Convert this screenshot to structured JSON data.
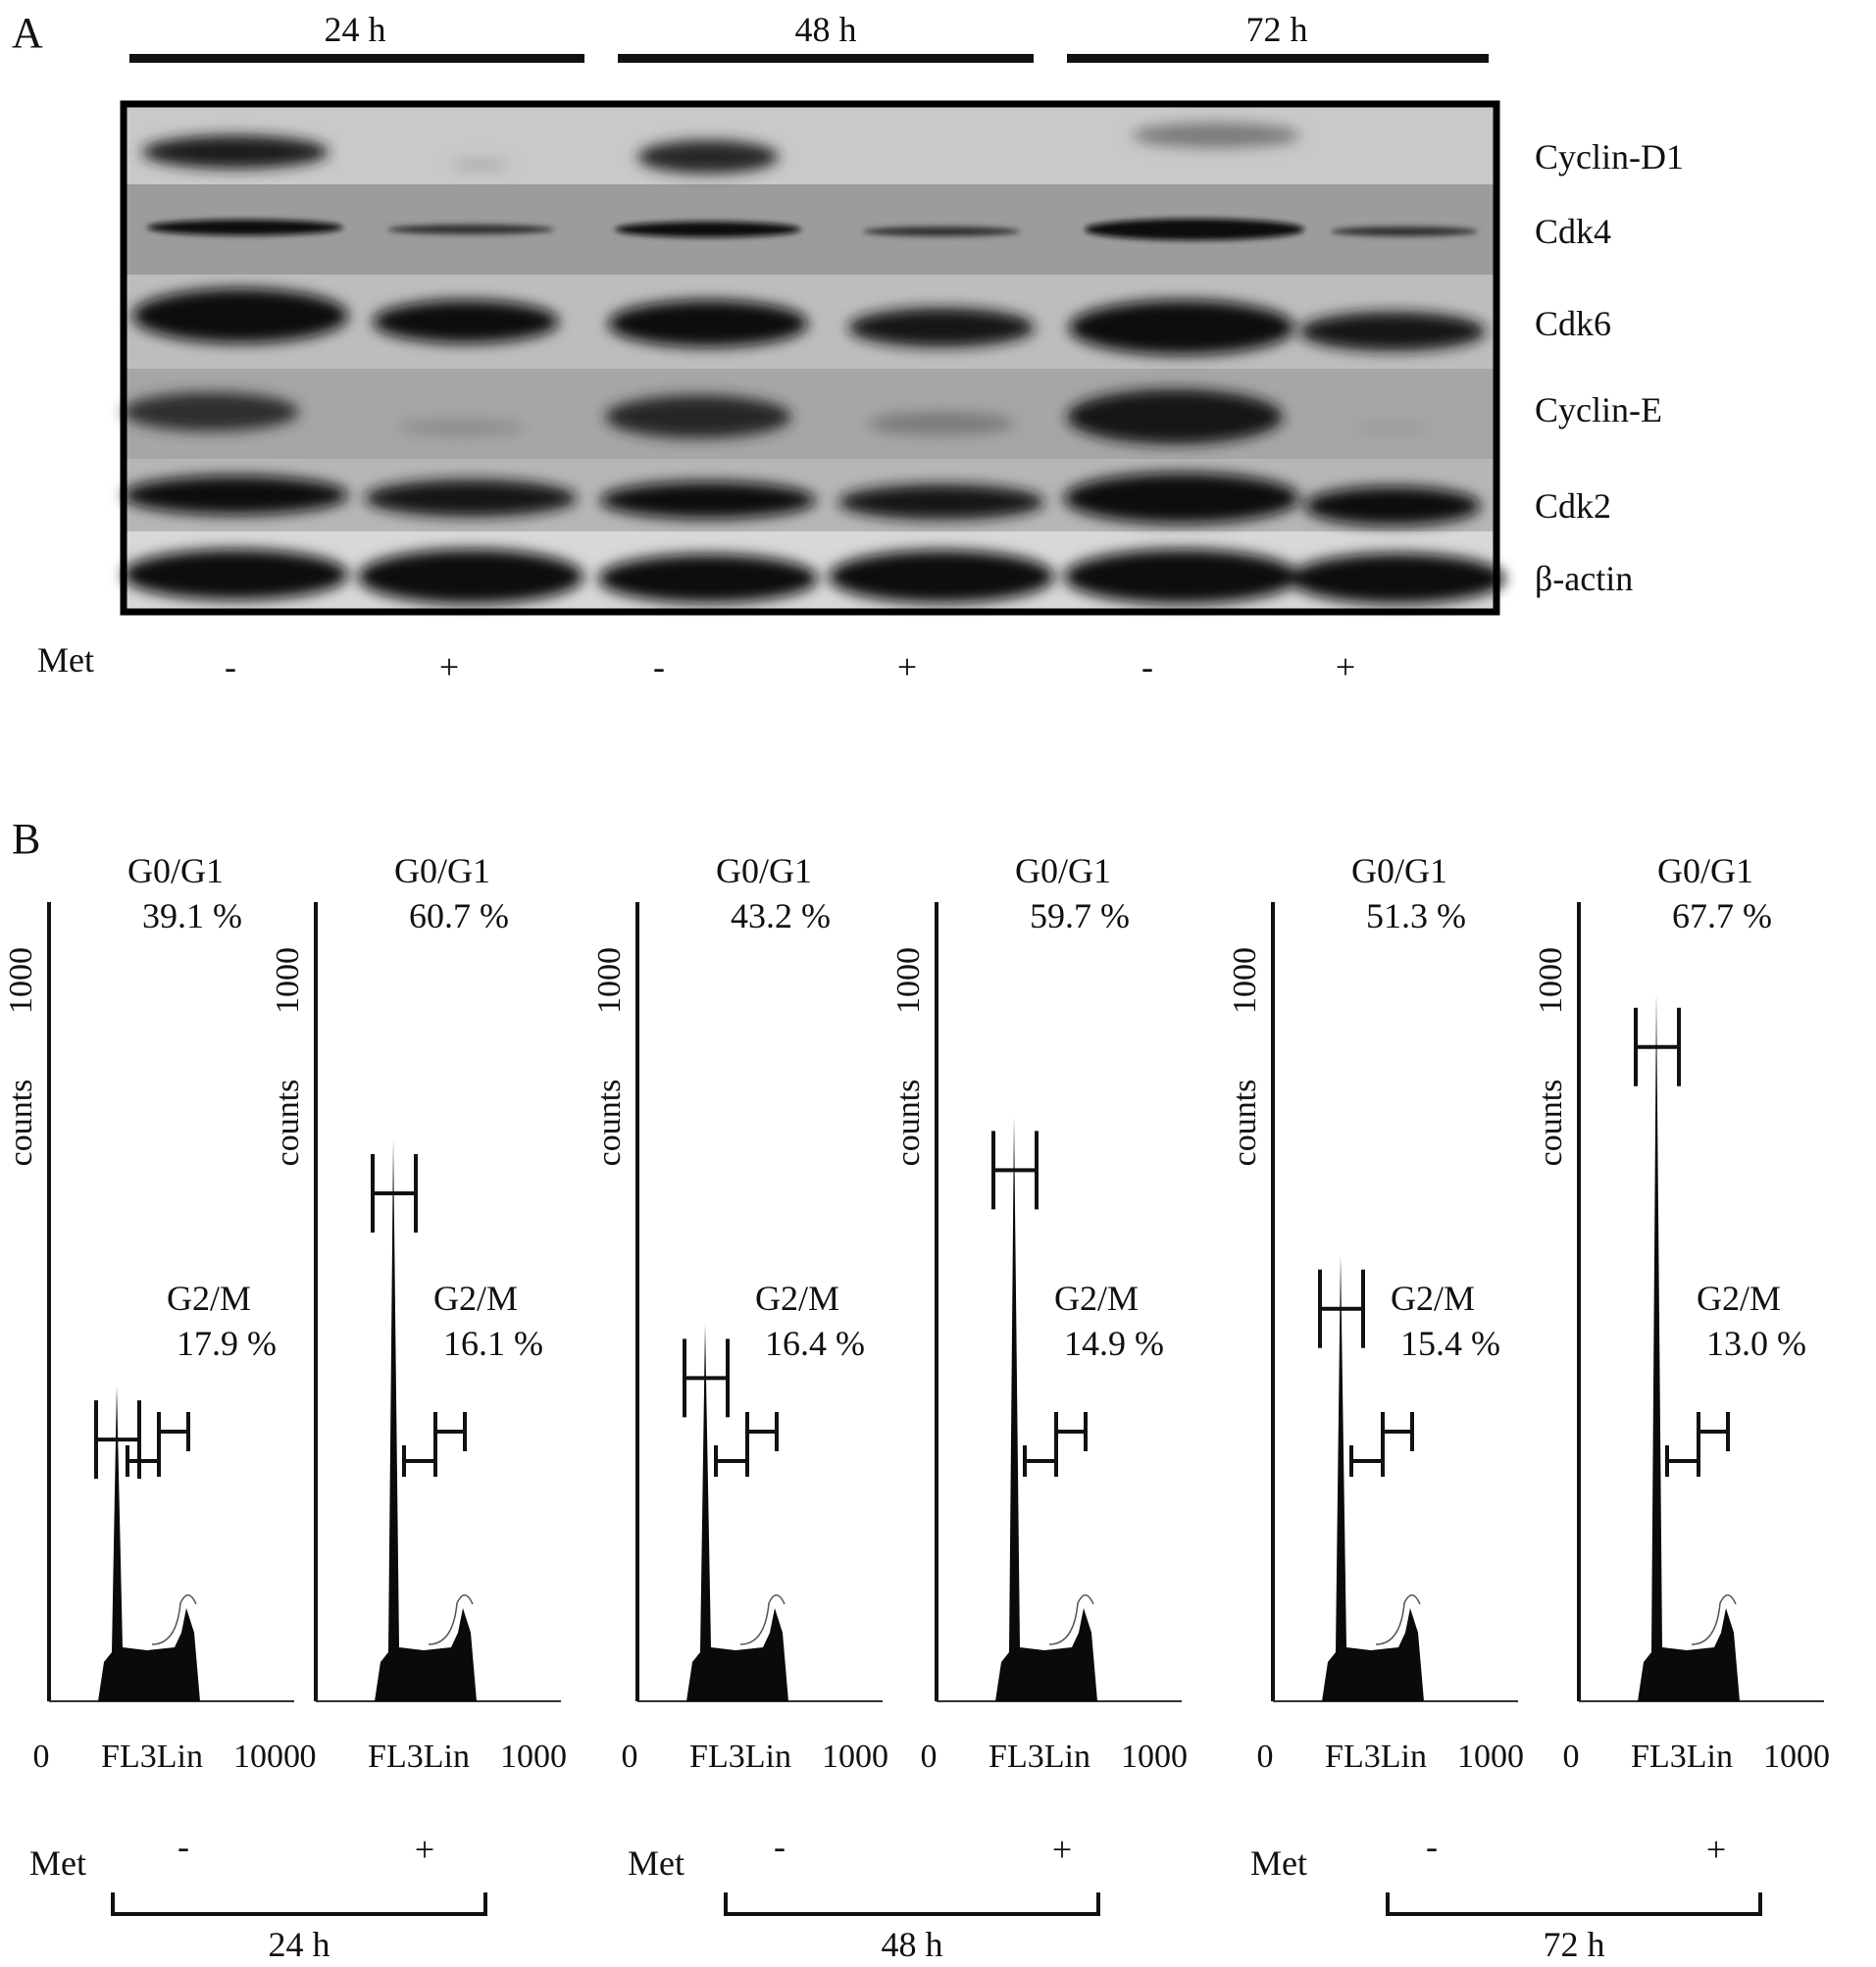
{
  "panel_a": {
    "label": "A",
    "timepoints": [
      "24 h",
      "48 h",
      "72 h"
    ],
    "proteins": [
      "Cyclin-D1",
      "Cdk4",
      "Cdk6",
      "Cyclin-E",
      "Cdk2",
      "β-actin"
    ],
    "met_label": "Met",
    "met_signs": [
      "-",
      "+",
      "-",
      "+",
      "-",
      "+"
    ]
  },
  "panel_b": {
    "label": "B",
    "y_axis_label": "counts",
    "y_tick": "1000",
    "x_axis": {
      "min": "0",
      "label": "FL3Lin",
      "max": "1000"
    },
    "met_label": "Met",
    "timepoints": [
      "24 h",
      "48 h",
      "72 h"
    ],
    "plots": [
      {
        "met": "-",
        "g0g1_label": "G0/G1",
        "g0g1_value": "39.1 %",
        "g2m_label": "G2/M",
        "g2m_value": "17.9 %",
        "g1_peak": 0.41
      },
      {
        "met": "+",
        "g0g1_label": "G0/G1",
        "g0g1_value": "60.7 %",
        "g2m_label": "G2/M",
        "g2m_value": "16.1 %",
        "g1_peak": 0.73
      },
      {
        "met": "-",
        "g0g1_label": "G0/G1",
        "g0g1_value": "43.2 %",
        "g2m_label": "G2/M",
        "g2m_value": "16.4 %",
        "g1_peak": 0.49
      },
      {
        "met": "+",
        "g0g1_label": "G0/G1",
        "g0g1_value": "59.7 %",
        "g2m_label": "G2/M",
        "g2m_value": "14.9 %",
        "g1_peak": 0.76
      },
      {
        "met": "-",
        "g0g1_label": "G0/G1",
        "g0g1_value": "51.3 %",
        "g2m_label": "G2/M",
        "g2m_value": "15.4 %",
        "g1_peak": 0.58
      },
      {
        "met": "+",
        "g0g1_label": "G0/G1",
        "g0g1_value": "67.7 %",
        "g2m_label": "G2/M",
        "g2m_value": "13.0 %",
        "g1_peak": 0.92
      }
    ]
  }
}
